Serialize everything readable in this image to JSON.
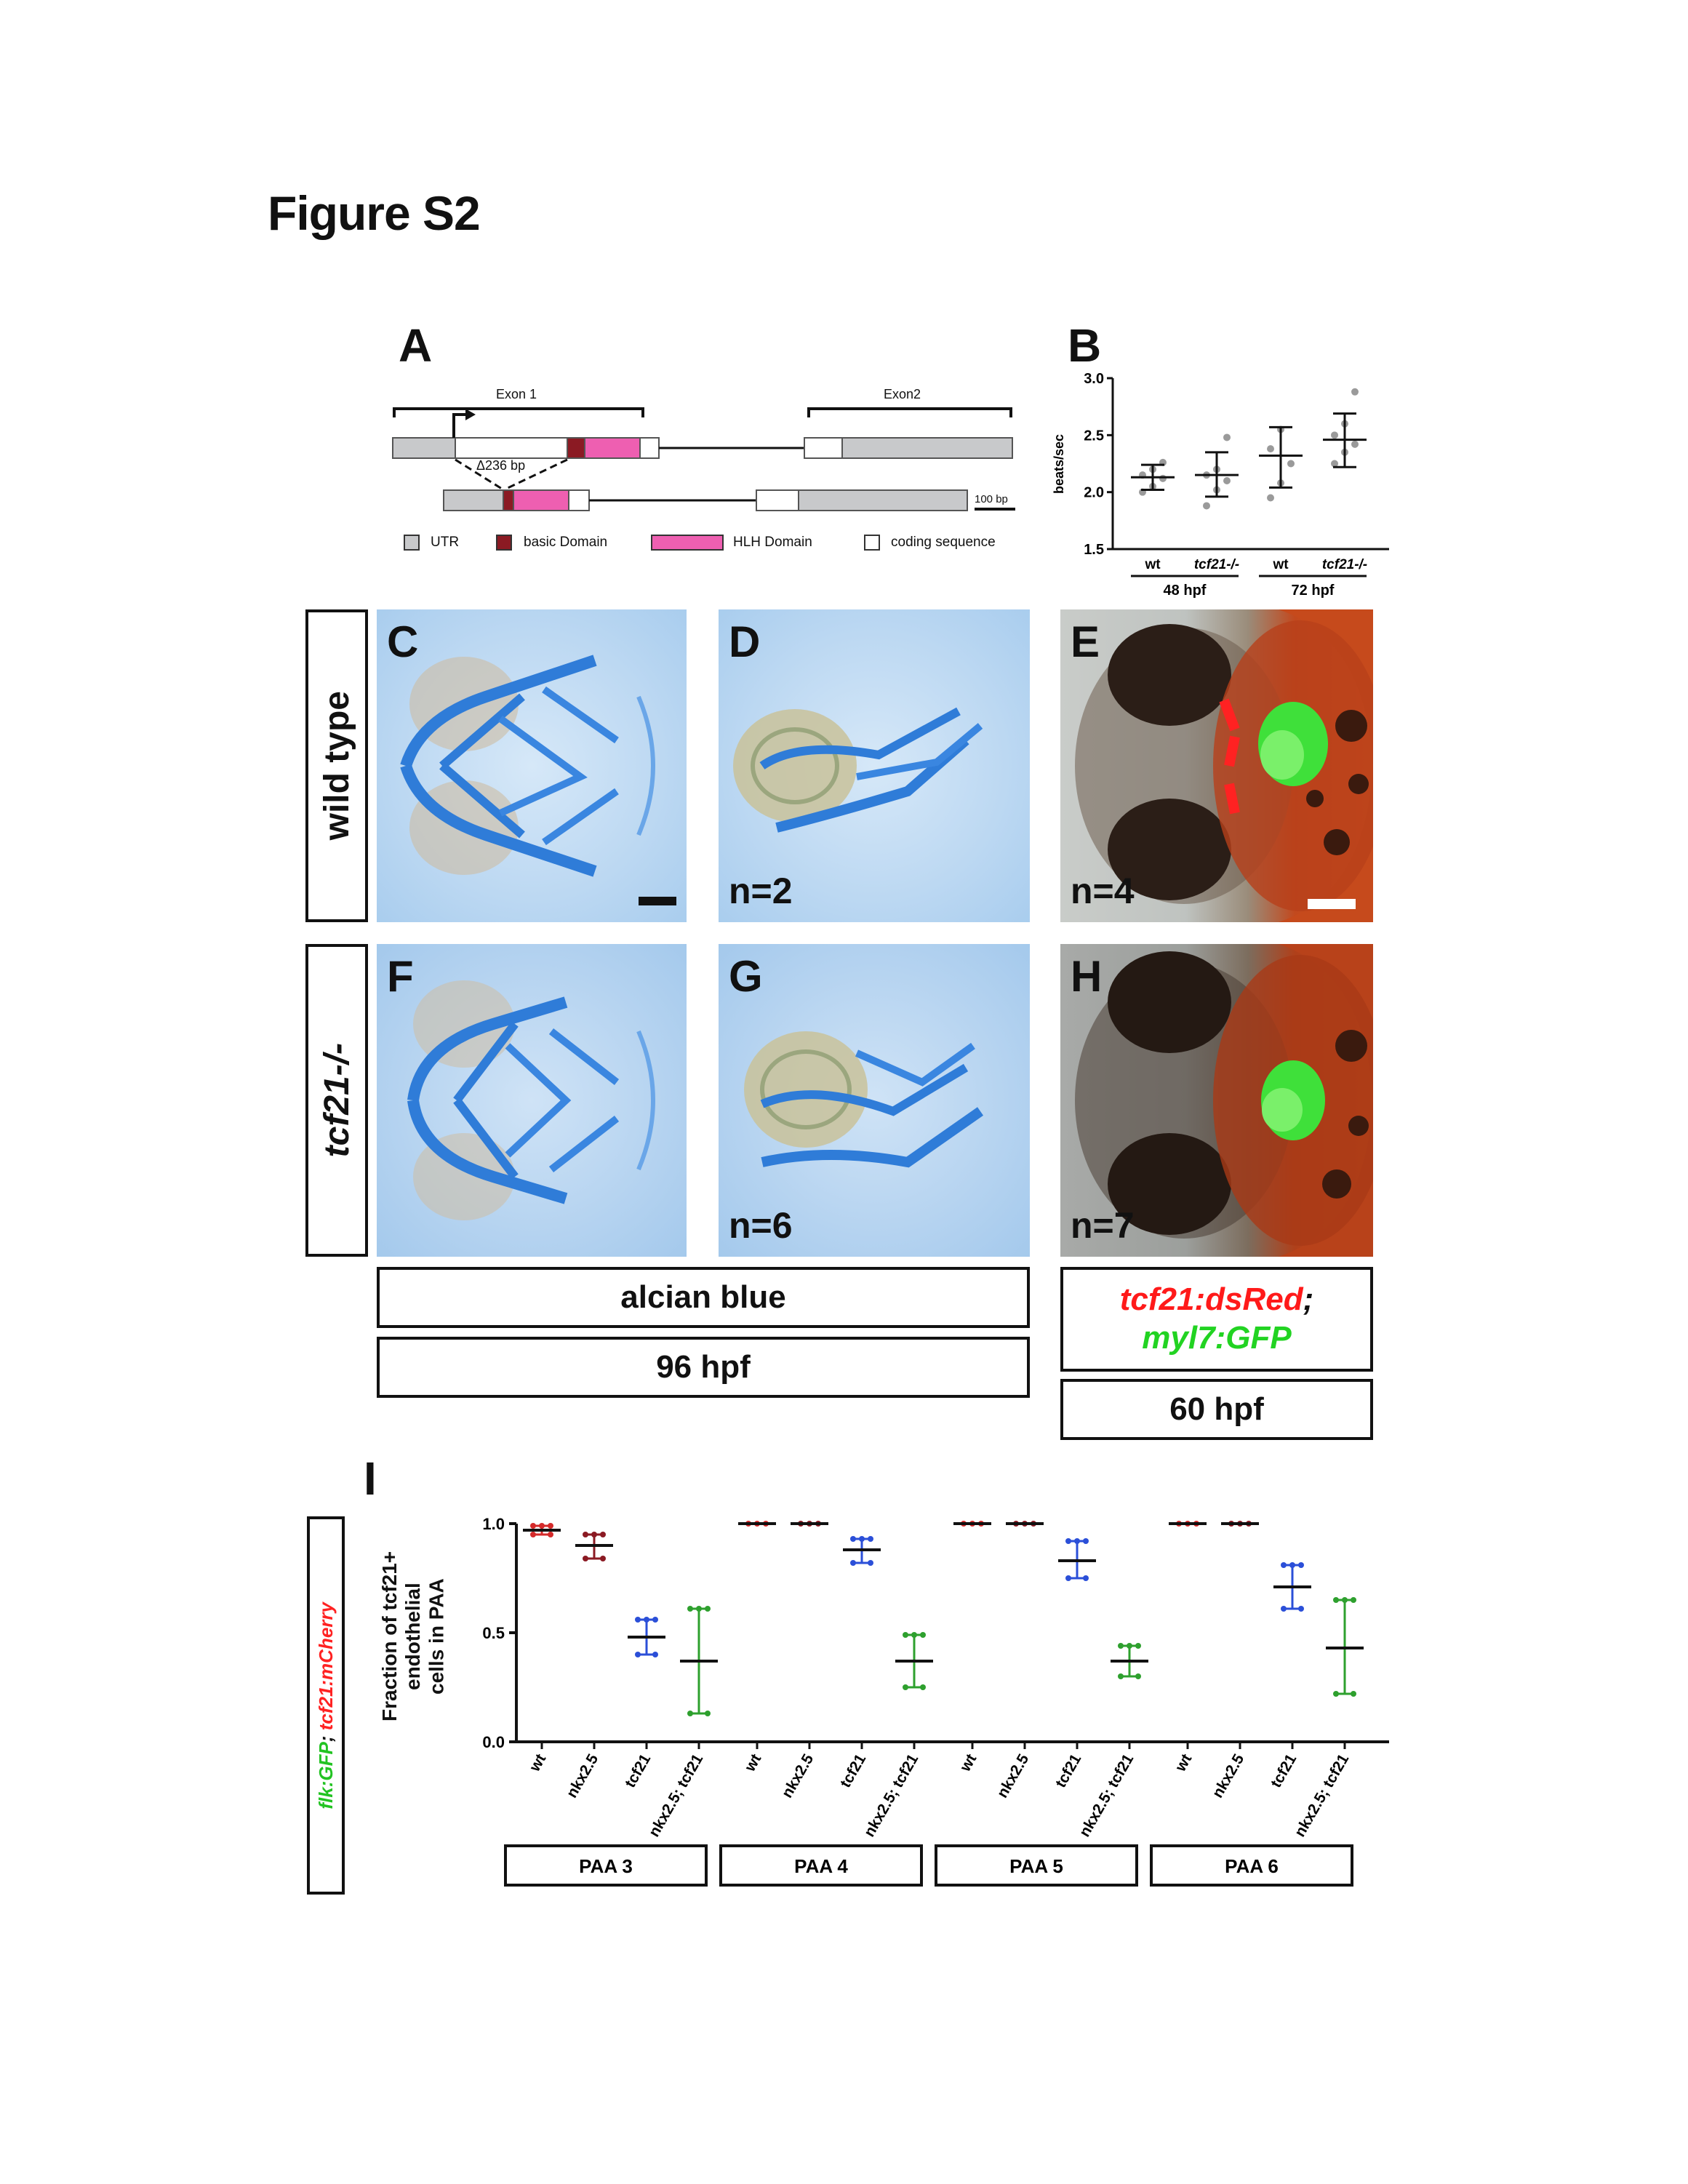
{
  "figure_title": "Figure S2",
  "panelA": {
    "label": "A",
    "exon1": "Exon 1",
    "exon2": "Exon2",
    "deletion": "Δ236 bp",
    "scalebar": "100 bp",
    "legend": [
      {
        "label": "UTR",
        "color": "#c8c9cb"
      },
      {
        "label": "basic Domain",
        "color": "#8b1a23"
      },
      {
        "label": "HLH Domain",
        "color": "#ee5fb1"
      },
      {
        "label": "coding sequence",
        "color": "#ffffff"
      }
    ]
  },
  "panelB": {
    "label": "B",
    "chart_data": {
      "type": "scatter",
      "ylabel": "beats/sec",
      "ylim": [
        1.5,
        3.0
      ],
      "yticks": [
        "1.5",
        "2.0",
        "2.5",
        "3.0"
      ],
      "categories": [
        "wt",
        "tcf21-/-",
        "wt",
        "tcf21-/-"
      ],
      "groups": [
        {
          "label": "48 hpf",
          "span": [
            0,
            1
          ]
        },
        {
          "label": "72 hpf",
          "span": [
            2,
            3
          ]
        }
      ],
      "means": [
        2.13,
        2.15,
        2.32,
        2.46
      ],
      "err_high": [
        2.24,
        2.35,
        2.57,
        2.69
      ],
      "err_low": [
        2.02,
        1.96,
        2.04,
        2.22
      ],
      "points": [
        [
          2.0,
          2.05,
          2.12,
          2.15,
          2.2,
          2.26
        ],
        [
          1.88,
          2.02,
          2.1,
          2.15,
          2.2,
          2.48
        ],
        [
          1.95,
          2.08,
          2.25,
          2.38,
          2.55
        ],
        [
          2.25,
          2.35,
          2.42,
          2.5,
          2.6,
          2.88
        ]
      ]
    }
  },
  "photos": {
    "C": {
      "label": "C",
      "n": ""
    },
    "D": {
      "label": "D",
      "n": "n=2"
    },
    "E": {
      "label": "E",
      "n": "n=4"
    },
    "F": {
      "label": "F",
      "n": ""
    },
    "G": {
      "label": "G",
      "n": "n=6"
    },
    "H": {
      "label": "H",
      "n": "n=7"
    }
  },
  "row_labels": {
    "wild_type": "wild type",
    "mutant": "tcf21-/-"
  },
  "captions": {
    "alcian": "alcian blue",
    "hpf96": "96 hpf",
    "reporter_red": "tcf21:dsRed",
    "reporter_sep": ";",
    "reporter_green": "myl7:GFP",
    "hpf60": "60 hpf"
  },
  "panelI": {
    "label": "I",
    "side_label_green": "flk:GFP",
    "side_label_sep": "; ",
    "side_label_red": "tcf21:mCherry",
    "ylabel_line1": "Fraction of tcf21+",
    "ylabel_line2": "endothelial",
    "ylabel_line3": "cells in PAA",
    "chart_data": {
      "type": "scatter",
      "ylim": [
        0.0,
        1.0
      ],
      "yticks": [
        "0.0",
        "0.5",
        "1.0"
      ],
      "categories": [
        "wt",
        "nkx2.5",
        "tcf21",
        "nkx2.5; tcf21"
      ],
      "colors": [
        "#d42a2a",
        "#8b1a23",
        "#2b4fd8",
        "#2ea02e"
      ],
      "groups": [
        {
          "label": "PAA 3",
          "means": [
            0.97,
            0.9,
            0.48,
            0.37
          ],
          "err_high": [
            0.99,
            0.95,
            0.56,
            0.61
          ],
          "err_low": [
            0.95,
            0.84,
            0.4,
            0.13
          ]
        },
        {
          "label": "PAA 4",
          "means": [
            1.0,
            1.0,
            0.88,
            0.37
          ],
          "err_high": [
            1.0,
            1.0,
            0.93,
            0.49
          ],
          "err_low": [
            1.0,
            1.0,
            0.82,
            0.25
          ]
        },
        {
          "label": "PAA 5",
          "means": [
            1.0,
            1.0,
            0.83,
            0.37
          ],
          "err_high": [
            1.0,
            1.0,
            0.92,
            0.44
          ],
          "err_low": [
            1.0,
            1.0,
            0.75,
            0.3
          ]
        },
        {
          "label": "PAA 6",
          "means": [
            1.0,
            1.0,
            0.71,
            0.43
          ],
          "err_high": [
            1.0,
            1.0,
            0.81,
            0.65
          ],
          "err_low": [
            1.0,
            1.0,
            0.61,
            0.22
          ]
        }
      ]
    }
  }
}
